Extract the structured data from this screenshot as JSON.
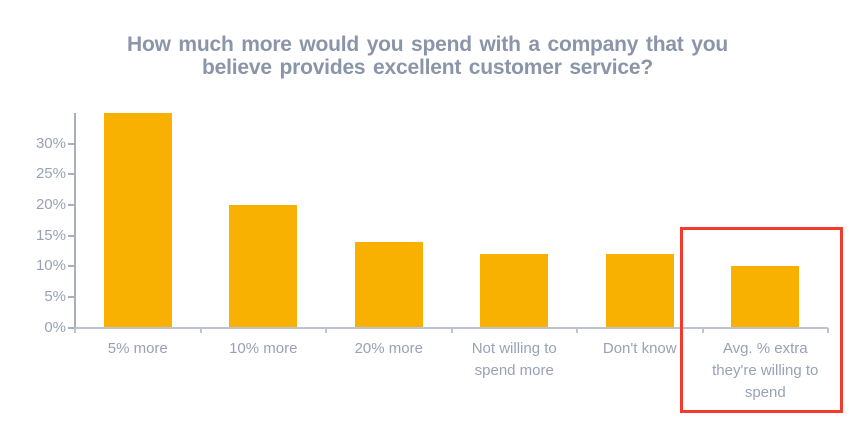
{
  "chart_data": {
    "type": "bar",
    "title": "How much more would you spend with a company that you believe provides excellent customer service?",
    "title_lines": [
      "How much more would you spend with a company that you",
      "believe provides excellent customer service?"
    ],
    "categories": [
      "5% more",
      "10% more",
      "20% more",
      "Not willing to spend more",
      "Don't know",
      "Avg. % extra they're willing to spend"
    ],
    "category_label_lines": [
      [
        "5% more"
      ],
      [
        "10% more"
      ],
      [
        "20% more"
      ],
      [
        "Not willing to",
        "spend more"
      ],
      [
        "Don't know"
      ],
      [
        "Avg. % extra",
        "they're willing to",
        "spend"
      ]
    ],
    "values": [
      35,
      20,
      14,
      12,
      12,
      10
    ],
    "unit": "%",
    "xlabel": "",
    "ylabel": "",
    "y_axis": {
      "min": 0,
      "max": 35,
      "tick_step": 5,
      "tick_labels": [
        "0%",
        "5%",
        "10%",
        "15%",
        "20%",
        "25%",
        "30%"
      ]
    },
    "grid": false,
    "legend": "none",
    "bar_color": "#f9b101",
    "highlight": {
      "category_index": 5,
      "category_label": "Avg. % extra they're willing to spend",
      "box_color": "#f23a2e"
    }
  },
  "colors": {
    "background": "#ffffff",
    "title_text": "#8a95a9",
    "axis_text": "#98a2b4",
    "axis_line": "#aab0ba",
    "highlight_red": "#f23a2e"
  }
}
